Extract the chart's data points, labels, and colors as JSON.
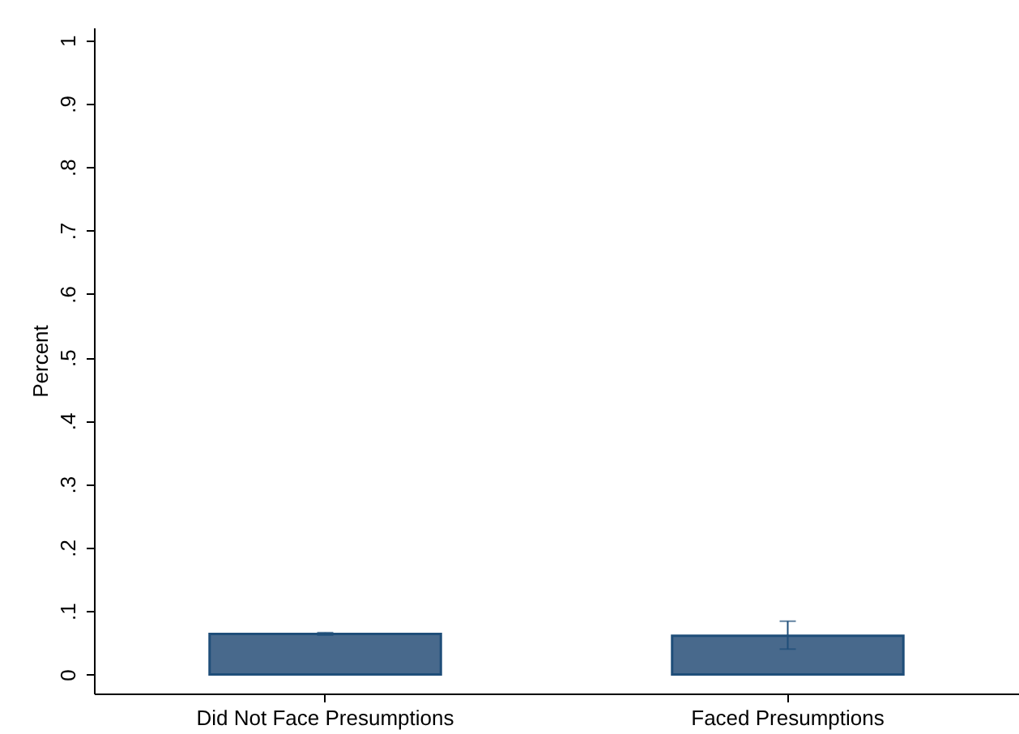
{
  "chart_data": {
    "type": "bar",
    "ylabel": "Percent",
    "categories": [
      "Did Not Face Presumptions",
      "Faced Presumptions"
    ],
    "values": [
      0.064,
      0.061
    ],
    "errors": [
      [
        0.062,
        0.066
      ],
      [
        0.04,
        0.084
      ]
    ],
    "color": "#48698c",
    "ylim": [
      -0.03,
      1.02
    ],
    "yticks": [
      {
        "value": 0,
        "label": "0"
      },
      {
        "value": 0.1,
        "label": ".1"
      },
      {
        "value": 0.2,
        "label": ".2"
      },
      {
        "value": 0.3,
        "label": ".3"
      },
      {
        "value": 0.4,
        "label": ".4"
      },
      {
        "value": 0.5,
        "label": ".5"
      },
      {
        "value": 0.6,
        "label": ".6"
      },
      {
        "value": 0.7,
        "label": ".7"
      },
      {
        "value": 0.8,
        "label": ".8"
      },
      {
        "value": 0.9,
        "label": ".9"
      },
      {
        "value": 1,
        "label": "1"
      }
    ],
    "grid": false
  }
}
